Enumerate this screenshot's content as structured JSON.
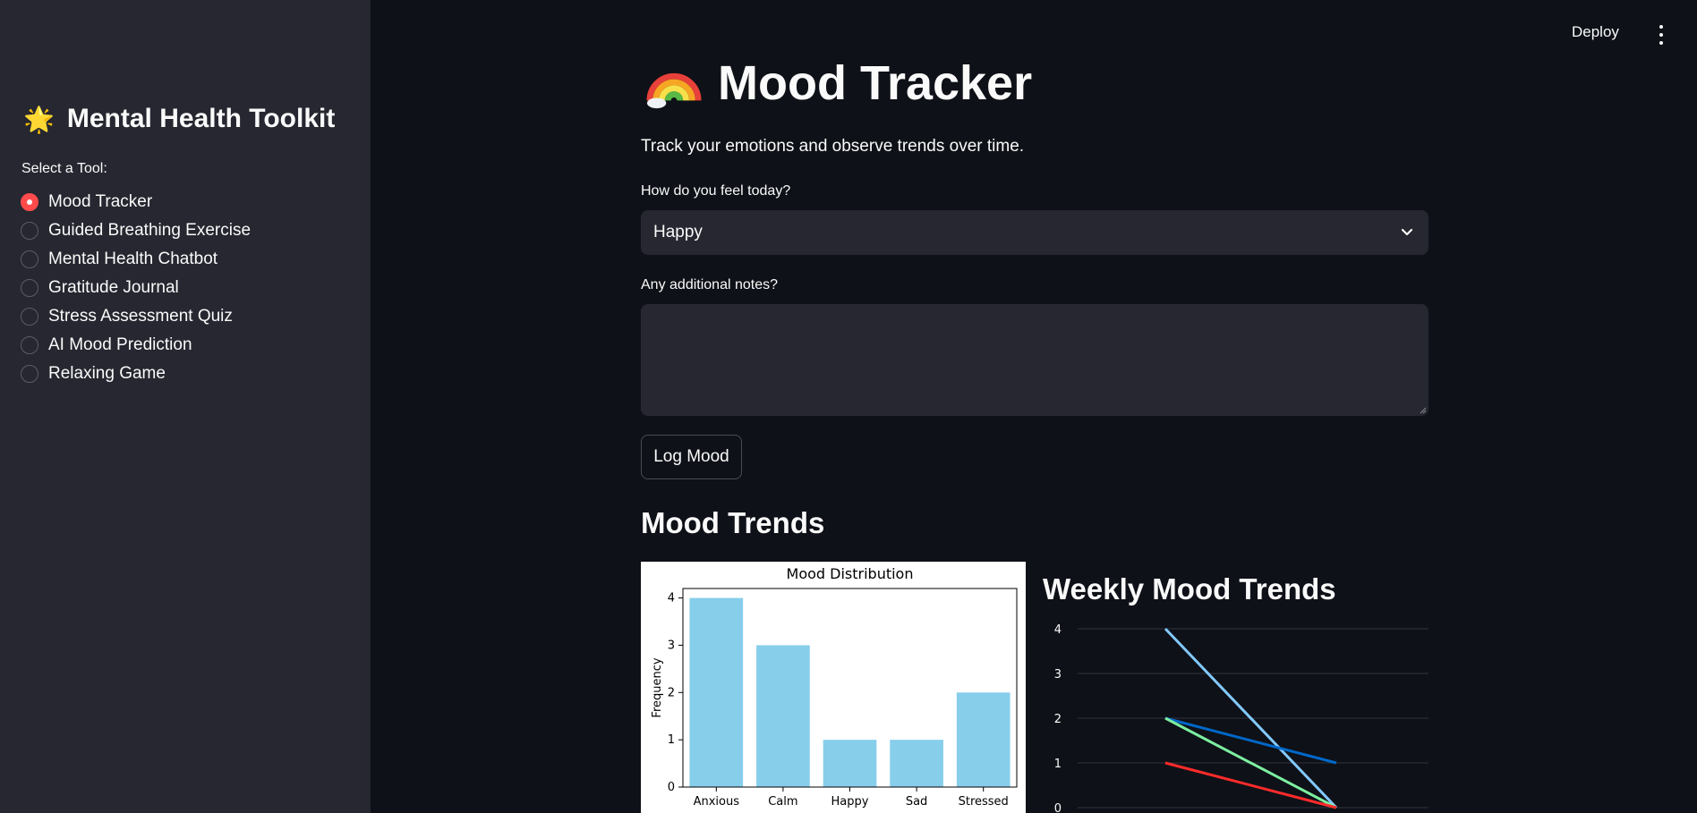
{
  "sidebar": {
    "title": "Mental Health Toolkit",
    "title_icon": "sun-emoji",
    "select_label": "Select a Tool:",
    "items": [
      {
        "label": "Mood Tracker",
        "selected": true
      },
      {
        "label": "Guided Breathing Exercise",
        "selected": false
      },
      {
        "label": "Mental Health Chatbot",
        "selected": false
      },
      {
        "label": "Gratitude Journal",
        "selected": false
      },
      {
        "label": "Stress Assessment Quiz",
        "selected": false
      },
      {
        "label": "AI Mood Prediction",
        "selected": false
      },
      {
        "label": "Relaxing Game",
        "selected": false
      }
    ]
  },
  "header": {
    "deploy_label": "Deploy",
    "menu_icon": "more-vertical-icon"
  },
  "main": {
    "title": "Mood Tracker",
    "title_icon": "rainbow-emoji",
    "subtitle": "Track your emotions and observe trends over time.",
    "mood_label": "How do you feel today?",
    "mood_value": "Happy",
    "notes_label": "Any additional notes?",
    "notes_value": "",
    "log_button": "Log Mood",
    "trends_title": "Mood Trends",
    "weekly_title": "Weekly Mood Trends"
  },
  "colors": {
    "accent": "#ff4b4b",
    "bar": "#87ceeb",
    "background": "#0e1117",
    "sidebar": "#262730"
  },
  "chart_data": [
    {
      "type": "bar",
      "title": "Mood Distribution",
      "ylabel": "Frequency",
      "xlabel": "",
      "categories": [
        "Anxious",
        "Calm",
        "Happy",
        "Sad",
        "Stressed"
      ],
      "values": [
        4,
        3,
        1,
        1,
        2
      ],
      "ylim": [
        0,
        4.2
      ],
      "yticks": [
        0,
        1,
        2,
        3,
        4
      ],
      "color": "#87ceeb"
    },
    {
      "type": "line",
      "title": "",
      "ylim": [
        0,
        4
      ],
      "yticks": [
        0,
        1,
        2,
        3,
        4
      ],
      "x": [
        0,
        1
      ],
      "grid": true,
      "series": [
        {
          "values": [
            4,
            0
          ],
          "color": "#83c9ff"
        },
        {
          "values": [
            2,
            1
          ],
          "color": "#0068c9"
        },
        {
          "values": [
            2,
            0
          ],
          "color": "#7defa1"
        },
        {
          "values": [
            1,
            0
          ],
          "color": "#ff2b2b"
        }
      ]
    }
  ]
}
